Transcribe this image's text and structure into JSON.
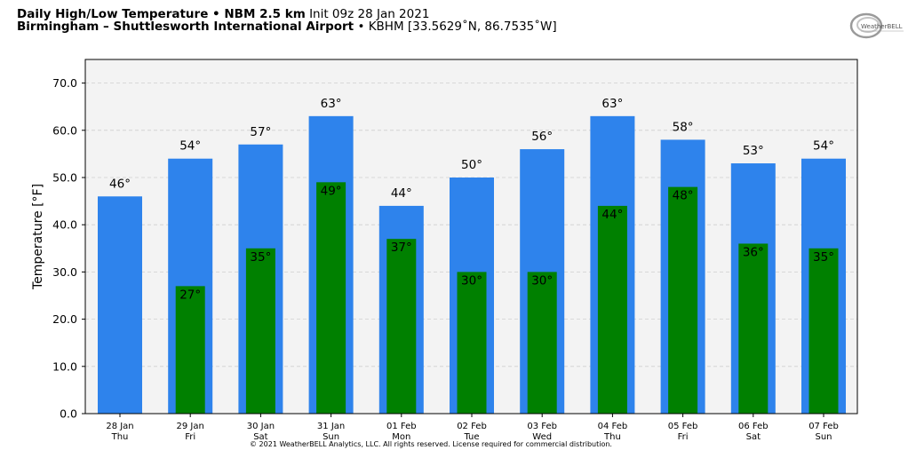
{
  "header": {
    "title_bold": "Daily High/Low Temperature • NBM 2.5 km",
    "title_rest": "Init 09z 28 Jan 2021",
    "location_bold": "Birmingham – Shuttlesworth International Airport",
    "location_rest": "• KBHM [33.5629˚N, 86.7535˚W]"
  },
  "logo": {
    "text": "WeatherBELL",
    "icon": "weatherbell-logo"
  },
  "footer": {
    "copyright": "© 2021 WeatherBELL Analytics, LLC. All rights reserved. License required for commercial distribution."
  },
  "colors": {
    "high": "#2e83ec",
    "low": "#008000",
    "plot_bg": "#f3f3f3",
    "grid": "#cfcfcf"
  },
  "chart_data": {
    "type": "bar",
    "title": "Daily High/Low Temperature • NBM 2.5 km",
    "xlabel": "",
    "ylabel": "Temperature [°F]",
    "ylim": [
      0,
      75
    ],
    "yticks": [
      "0.0",
      "10.0",
      "20.0",
      "30.0",
      "40.0",
      "50.0",
      "60.0",
      "70.0"
    ],
    "grid": "horizontal dashed",
    "categories": [
      [
        "28 Jan",
        "Thu"
      ],
      [
        "29 Jan",
        "Fri"
      ],
      [
        "30 Jan",
        "Sat"
      ],
      [
        "31 Jan",
        "Sun"
      ],
      [
        "01 Feb",
        "Mon"
      ],
      [
        "02 Feb",
        "Tue"
      ],
      [
        "03 Feb",
        "Wed"
      ],
      [
        "04 Feb",
        "Thu"
      ],
      [
        "05 Feb",
        "Fri"
      ],
      [
        "06 Feb",
        "Sat"
      ],
      [
        "07 Feb",
        "Sun"
      ]
    ],
    "series": [
      {
        "values": [
          46,
          54,
          57,
          63,
          44,
          50,
          56,
          63,
          58,
          53,
          54
        ]
      },
      {
        "values": [
          null,
          27,
          35,
          49,
          37,
          30,
          30,
          44,
          48,
          36,
          35
        ]
      }
    ]
  }
}
